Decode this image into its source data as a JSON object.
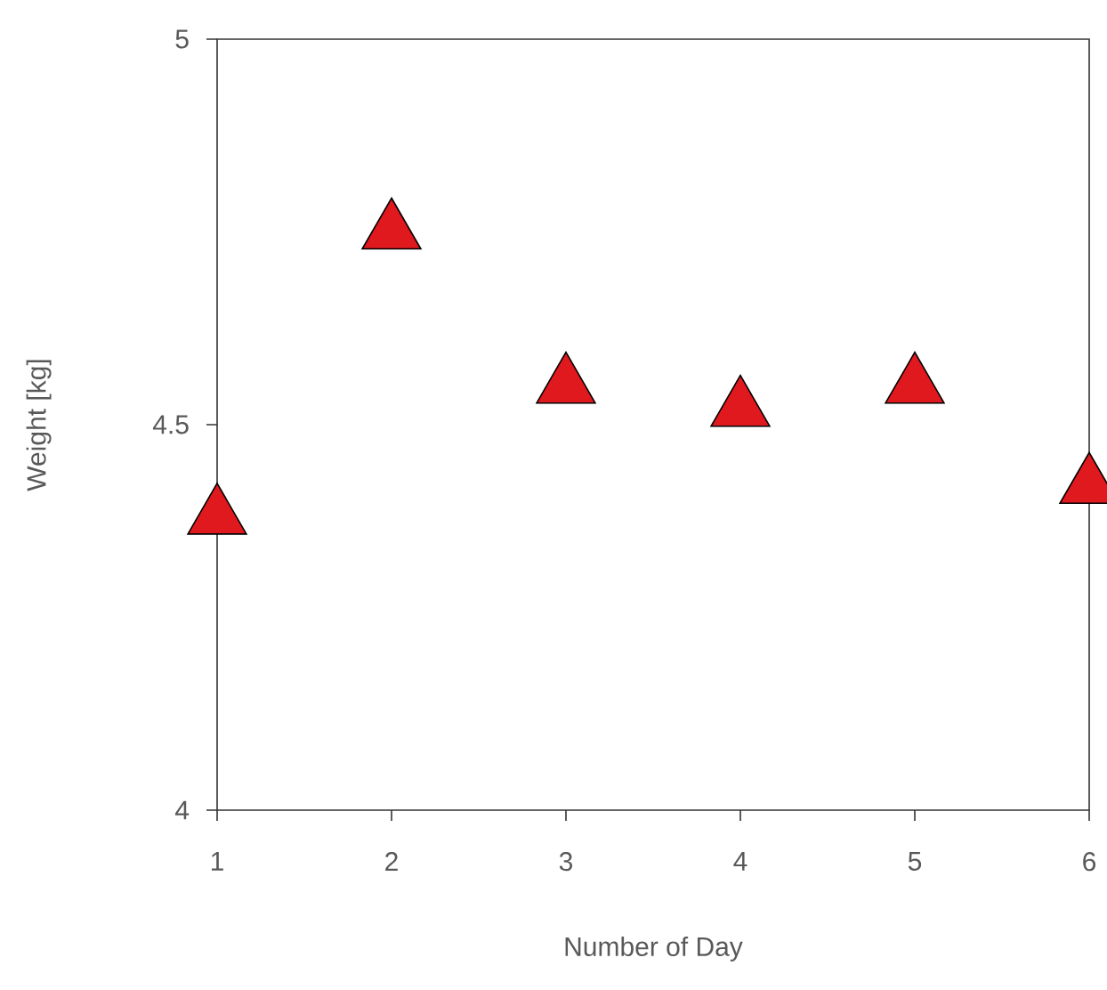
{
  "chart_data": {
    "type": "scatter",
    "xlabel": "Number of Day",
    "ylabel": "Weight [kg]",
    "x": [
      1,
      2,
      3,
      4,
      5,
      6
    ],
    "series": [
      {
        "color": "#e0191e",
        "values": [
          4.38,
          4.75,
          4.55,
          4.52,
          4.55,
          4.42
        ]
      }
    ],
    "marker": "triangle",
    "grid": false,
    "xlim": [
      1,
      6
    ],
    "ylim": [
      4,
      5
    ],
    "xticks": [
      1,
      2,
      3,
      4,
      5,
      6
    ],
    "yticks": [
      4,
      4.5,
      5
    ]
  }
}
